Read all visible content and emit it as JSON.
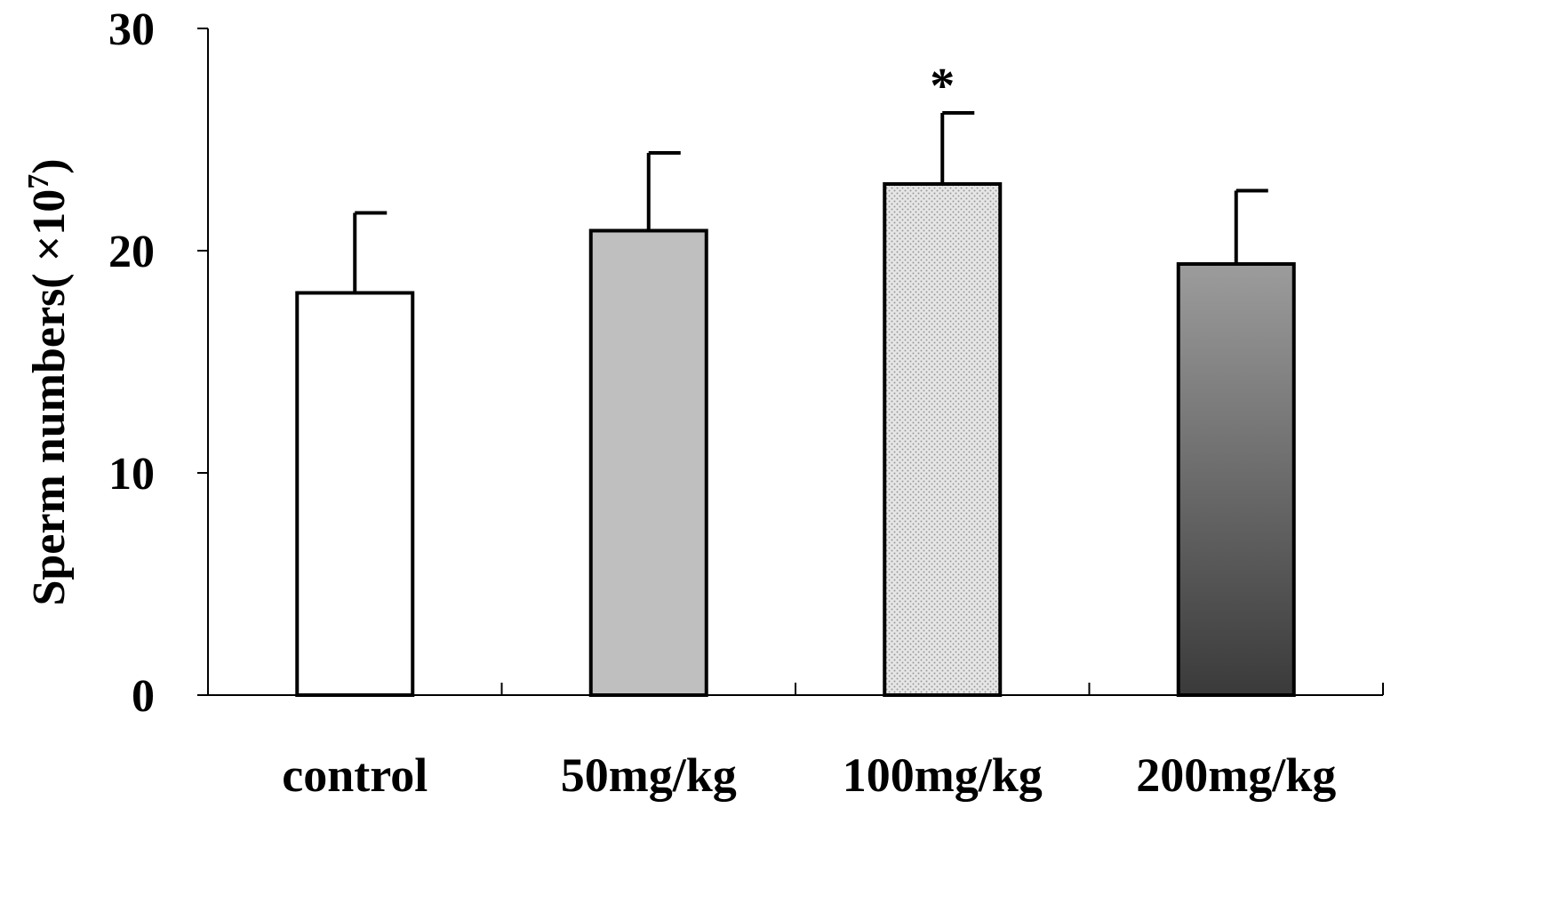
{
  "chart_data": {
    "type": "bar",
    "categories": [
      "control",
      "50mg/kg",
      "100mg/kg",
      "200mg/kg"
    ],
    "values": [
      18.1,
      20.9,
      23.0,
      19.4
    ],
    "errors": [
      3.6,
      3.5,
      3.2,
      3.3
    ],
    "annotations": [
      "",
      "",
      "*",
      ""
    ],
    "ylabel": "Sperm numbers( ×10",
    "ylabel_superscript": "7",
    "ylabel_close": ")",
    "ylim": [
      0,
      30
    ],
    "yticks": [
      "0",
      "10",
      "20",
      "30"
    ],
    "grid": false,
    "legend": "none",
    "bar_fills": [
      "white",
      "solid-gray",
      "dotted-light-gray",
      "gradient-gray-dark"
    ],
    "colors": {
      "white": "#ffffff",
      "solid_gray": "#bfbfbf",
      "dotted_base": "#e6e6e6",
      "dotted_dot": "#9a9a9a",
      "gradient_top": "#9c9c9c",
      "gradient_bottom": "#3a3a3a",
      "stroke": "#000000"
    }
  }
}
